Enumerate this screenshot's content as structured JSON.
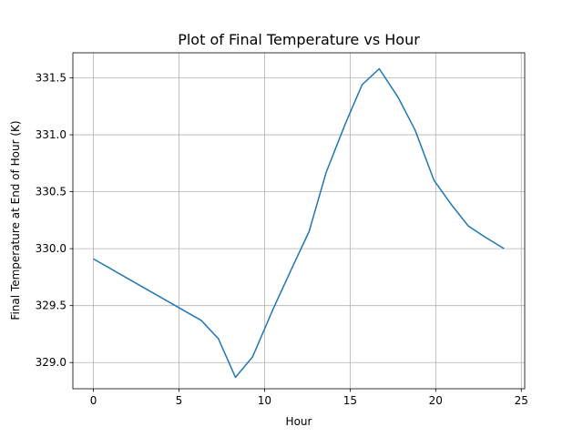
{
  "chart_data": {
    "type": "line",
    "title": "Plot of Final Temperature vs Hour",
    "xlabel": "Hour",
    "ylabel": "Final Temperature at End of Hour (K)",
    "xlim": [
      -1.2,
      25.2
    ],
    "ylim": [
      328.77,
      331.72
    ],
    "xticks": [
      0,
      5,
      10,
      15,
      20,
      25
    ],
    "xtick_labels": [
      "0",
      "5",
      "10",
      "15",
      "20",
      "25"
    ],
    "yticks": [
      329.0,
      329.5,
      330.0,
      330.5,
      331.0,
      331.5
    ],
    "ytick_labels": [
      "329.0",
      "329.5",
      "330.0",
      "330.5",
      "331.0",
      "331.5"
    ],
    "grid": true,
    "series": [
      {
        "color": "#1f77b4",
        "x": [
          0,
          6.3,
          7.3,
          8.3,
          9.3,
          10.5,
          11.6,
          12.6,
          13.6,
          14.7,
          15.7,
          16.7,
          17.8,
          18.8,
          19.9,
          20.9,
          21.9,
          22.9,
          24
        ],
        "y": [
          329.91,
          329.37,
          329.21,
          328.87,
          329.05,
          329.47,
          329.83,
          330.15,
          330.67,
          331.09,
          331.44,
          331.58,
          331.33,
          331.04,
          330.6,
          330.39,
          330.2,
          330.1,
          330.0
        ]
      }
    ]
  }
}
